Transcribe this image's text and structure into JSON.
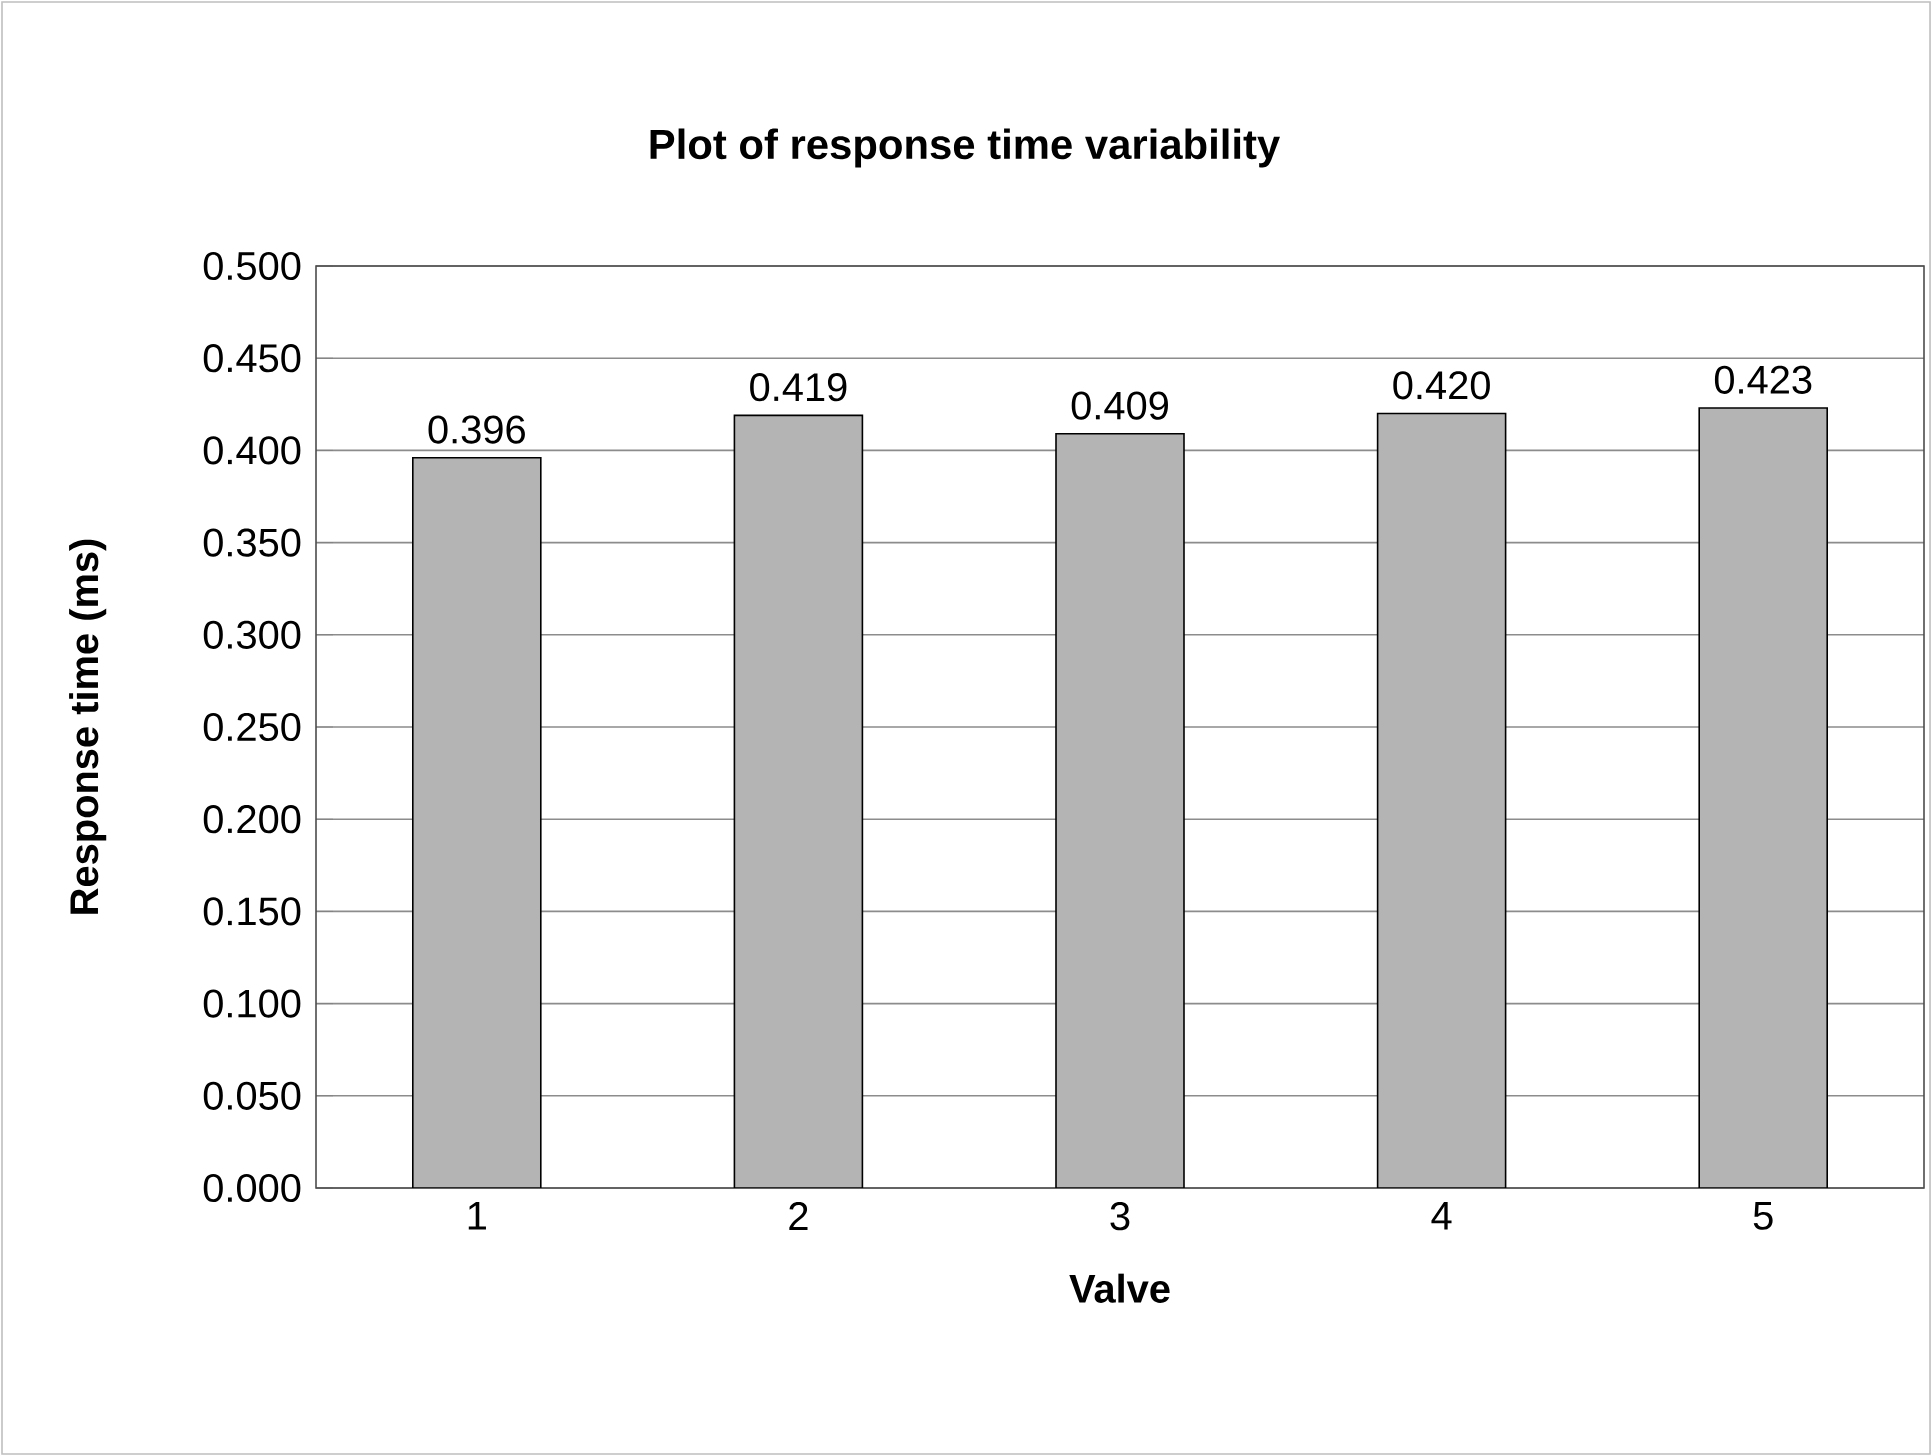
{
  "chart_data": {
    "type": "bar",
    "title": "Plot of response time variability",
    "xlabel": "Valve",
    "ylabel": "Response time (ms)",
    "categories": [
      "1",
      "2",
      "3",
      "4",
      "5"
    ],
    "values": [
      0.396,
      0.419,
      0.409,
      0.42,
      0.423
    ],
    "value_labels": [
      "0.396",
      "0.419",
      "0.409",
      "0.420",
      "0.423"
    ],
    "color": "#b4b4b4",
    "ylim": [
      0,
      0.5
    ],
    "yticks": [
      {
        "value": 0,
        "label": "0.000"
      },
      {
        "value": 0.05,
        "label": "0.050"
      },
      {
        "value": 0.1,
        "label": "0.100"
      },
      {
        "value": 0.15,
        "label": "0.150"
      },
      {
        "value": 0.2,
        "label": "0.200"
      },
      {
        "value": 0.25,
        "label": "0.250"
      },
      {
        "value": 0.3,
        "label": "0.300"
      },
      {
        "value": 0.35,
        "label": "0.350"
      },
      {
        "value": 0.4,
        "label": "0.400"
      },
      {
        "value": 0.45,
        "label": "0.450"
      },
      {
        "value": 0.5,
        "label": "0.500"
      }
    ],
    "grid": "y"
  }
}
